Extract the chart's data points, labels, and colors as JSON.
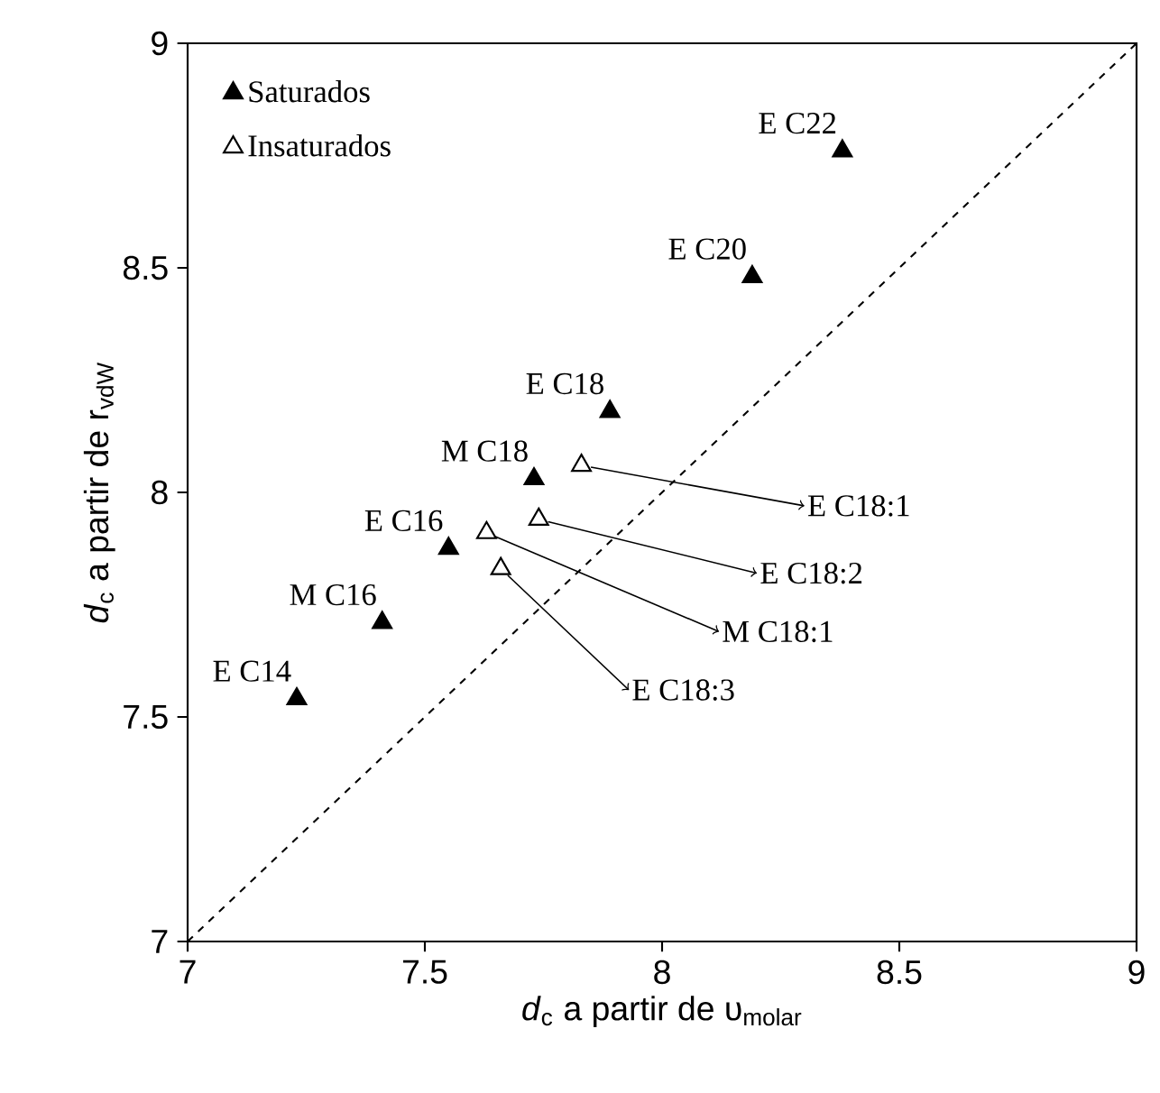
{
  "chart_data": {
    "type": "scatter",
    "xlabel": "*d*$_{c}$ a partir de υ$_{molar}$",
    "ylabel": "*d*$_{c}$ a partir de r$_{vdW}$",
    "xlim": [
      7,
      9
    ],
    "ylim": [
      7,
      9
    ],
    "xticks": [
      7,
      7.5,
      8,
      8.5,
      9
    ],
    "yticks": [
      7,
      7.5,
      8,
      8.5,
      9
    ],
    "legend": "top left",
    "grid": false,
    "marker": "triangle",
    "series": [
      {
        "name": "Saturados",
        "color": "#000000",
        "x": [
          7.23,
          7.41,
          7.55,
          7.73,
          7.89,
          8.19,
          8.38
        ],
        "values": [
          7.54,
          7.71,
          7.875,
          8.03,
          8.18,
          8.48,
          8.76
        ]
      },
      {
        "name": "Insaturados",
        "color": "#ffffff",
        "x": [
          7.83,
          7.74,
          7.63,
          7.66
        ],
        "values": [
          8.06,
          7.94,
          7.91,
          7.83
        ]
      },
      {
        "type": "line",
        "color": "#000000",
        "line_style": "dashed",
        "marker": "none",
        "x": [
          7,
          9
        ],
        "values": [
          7,
          9
        ]
      }
    ],
    "annotations": [
      {
        "text": "E C14",
        "x": 7.23,
        "y": 7.54
      },
      {
        "text": "M C16",
        "x": 7.41,
        "y": 7.71
      },
      {
        "text": "E C16",
        "x": 7.55,
        "y": 7.875
      },
      {
        "text": "M C18",
        "x": 7.73,
        "y": 8.03
      },
      {
        "text": "E C18",
        "x": 7.89,
        "y": 8.18
      },
      {
        "text": "E C20",
        "x": 8.19,
        "y": 8.48
      },
      {
        "text": "E C22",
        "x": 8.38,
        "y": 8.76
      },
      {
        "text": "E C18:1",
        "x": 7.83,
        "y": 8.06
      },
      {
        "text": "E C18:2",
        "x": 7.74,
        "y": 7.94
      },
      {
        "text": "M C18:1",
        "x": 7.63,
        "y": 7.91
      },
      {
        "text": "E C18:3",
        "x": 7.66,
        "y": 7.83
      }
    ]
  }
}
